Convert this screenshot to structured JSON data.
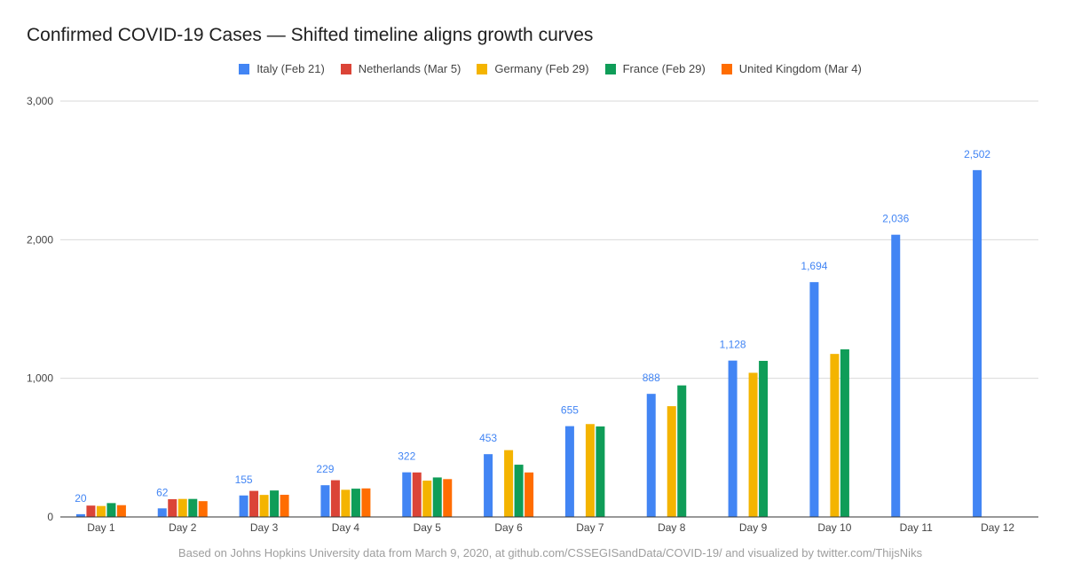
{
  "chart_data": {
    "type": "bar",
    "title": "Confirmed COVID-19 Cases — Shifted timeline aligns growth curves",
    "source": "Based on Johns Hopkins University data from March 9, 2020, at github.com/CSSEGISandData/COVID-19/ and visualized by twitter.com/ThijsNiks",
    "categories": [
      "Day 1",
      "Day 2",
      "Day 3",
      "Day 4",
      "Day 5",
      "Day 6",
      "Day 7",
      "Day 8",
      "Day 9",
      "Day 10",
      "Day 11",
      "Day 12"
    ],
    "ylim": [
      0,
      3000
    ],
    "yticks": [
      0,
      1000,
      2000,
      3000
    ],
    "ytick_labels": [
      "0",
      "1,000",
      "2,000",
      "3,000"
    ],
    "grid": true,
    "legend_position": "top",
    "series": [
      {
        "name": "Italy (Feb 21)",
        "color": "#4285F4",
        "values": [
          20,
          62,
          155,
          229,
          322,
          453,
          655,
          888,
          1128,
          1694,
          2036,
          2502
        ],
        "data_labels": [
          "20",
          "62",
          "155",
          "229",
          "322",
          "453",
          "655",
          "888",
          "1,128",
          "1,694",
          "2,036",
          "2,502"
        ]
      },
      {
        "name": "Netherlands (Mar 5)",
        "color": "#DB4437",
        "values": [
          82,
          128,
          188,
          265,
          321,
          null,
          null,
          null,
          null,
          null,
          null,
          null
        ]
      },
      {
        "name": "Germany (Feb 29)",
        "color": "#F4B400",
        "values": [
          79,
          130,
          159,
          196,
          262,
          482,
          670,
          799,
          1040,
          1176,
          null,
          null
        ]
      },
      {
        "name": "France (Feb 29)",
        "color": "#0F9D58",
        "values": [
          100,
          130,
          191,
          204,
          285,
          377,
          653,
          949,
          1126,
          1209,
          null,
          null
        ]
      },
      {
        "name": "United Kingdom (Mar 4)",
        "color": "#FF6D01",
        "values": [
          85,
          114,
          160,
          206,
          273,
          321,
          null,
          null,
          null,
          null,
          null,
          null
        ]
      }
    ]
  }
}
